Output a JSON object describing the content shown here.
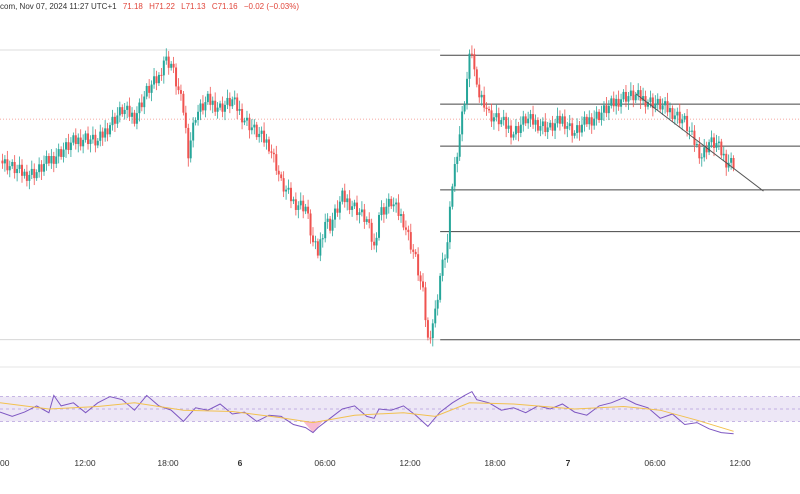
{
  "header": {
    "source": "com, Nov 07, 2024 11:27 UTC+1",
    "open": "71.18",
    "high": "H71.22",
    "low": "L71.13",
    "close": "C71.16",
    "change": "−0.02 (−0.03%)"
  },
  "colors": {
    "up": "#26a69a",
    "down": "#ef5350",
    "rsi_line": "#7e57c2",
    "rsi_ma": "#f2c14e",
    "rsi_band": "#ede7f6",
    "fib": "#444444",
    "trend": "#555555",
    "price_line": "#f28b82"
  },
  "chart_data": [
    {
      "type": "candlestick",
      "title": "",
      "x_ticks": [
        "00",
        "12:00",
        "18:00",
        "6",
        "06:00",
        "12:00",
        "18:00",
        "7",
        "06:00",
        "12:00"
      ],
      "bold_ticks": [
        "6",
        "7"
      ],
      "current_price": 71.16,
      "close_path": [
        [
          0,
          70.98
        ],
        [
          5,
          70.95
        ],
        [
          10,
          70.92
        ],
        [
          15,
          70.93
        ],
        [
          20,
          70.98
        ],
        [
          25,
          71.02
        ],
        [
          30,
          71.06
        ],
        [
          35,
          71.08
        ],
        [
          40,
          71.06
        ],
        [
          45,
          71.14
        ],
        [
          50,
          71.2
        ],
        [
          55,
          71.17
        ],
        [
          60,
          71.28
        ],
        [
          65,
          71.34
        ],
        [
          67,
          71.42
        ],
        [
          70,
          71.4
        ],
        [
          75,
          71.2
        ],
        [
          77,
          71.02
        ],
        [
          80,
          71.18
        ],
        [
          85,
          71.24
        ],
        [
          90,
          71.21
        ],
        [
          95,
          71.24
        ],
        [
          100,
          71.16
        ],
        [
          105,
          71.1
        ],
        [
          110,
          71.05
        ],
        [
          113,
          70.96
        ],
        [
          115,
          70.88
        ],
        [
          120,
          70.8
        ],
        [
          125,
          70.78
        ],
        [
          128,
          70.62
        ],
        [
          130,
          70.58
        ],
        [
          133,
          70.72
        ],
        [
          135,
          70.7
        ],
        [
          140,
          70.82
        ],
        [
          145,
          70.78
        ],
        [
          150,
          70.72
        ],
        [
          153,
          70.6
        ],
        [
          155,
          70.75
        ],
        [
          160,
          70.8
        ],
        [
          165,
          70.72
        ],
        [
          170,
          70.55
        ],
        [
          173,
          70.4
        ],
        [
          175,
          70.2
        ],
        [
          178,
          70.32
        ],
        [
          180,
          70.48
        ],
        [
          183,
          70.62
        ],
        [
          185,
          70.88
        ],
        [
          188,
          71.1
        ],
        [
          190,
          71.25
        ],
        [
          192,
          71.42
        ],
        [
          193,
          71.46
        ],
        [
          195,
          71.28
        ],
        [
          198,
          71.24
        ],
        [
          200,
          71.18
        ],
        [
          205,
          71.15
        ],
        [
          210,
          71.1
        ],
        [
          215,
          71.16
        ],
        [
          220,
          71.14
        ],
        [
          225,
          71.12
        ],
        [
          230,
          71.16
        ],
        [
          235,
          71.1
        ],
        [
          240,
          71.15
        ],
        [
          245,
          71.18
        ],
        [
          250,
          71.22
        ],
        [
          255,
          71.26
        ],
        [
          260,
          71.26
        ],
        [
          265,
          71.24
        ],
        [
          270,
          71.22
        ],
        [
          275,
          71.19
        ],
        [
          280,
          71.15
        ],
        [
          283,
          71.08
        ],
        [
          287,
          71.0
        ],
        [
          290,
          71.06
        ],
        [
          293,
          71.05
        ],
        [
          297,
          70.98
        ],
        [
          300,
          70.97
        ]
      ],
      "annotations": {
        "fib_levels": [
          71.437,
          71.225,
          71.043,
          70.853,
          70.672,
          70.203
        ],
        "trend_line": [
          [
            260,
            71.27
          ],
          [
            302,
            70.9
          ]
        ]
      }
    },
    {
      "type": "line",
      "title": "",
      "ylim": [
        0,
        100
      ],
      "band": [
        30,
        70
      ],
      "rsi": [
        [
          0,
          45
        ],
        [
          5,
          38
        ],
        [
          10,
          45
        ],
        [
          15,
          55
        ],
        [
          20,
          44
        ],
        [
          22,
          72
        ],
        [
          25,
          55
        ],
        [
          30,
          60
        ],
        [
          35,
          44
        ],
        [
          40,
          60
        ],
        [
          45,
          70
        ],
        [
          50,
          65
        ],
        [
          55,
          48
        ],
        [
          60,
          72
        ],
        [
          65,
          55
        ],
        [
          70,
          48
        ],
        [
          75,
          30
        ],
        [
          80,
          52
        ],
        [
          85,
          48
        ],
        [
          90,
          58
        ],
        [
          95,
          42
        ],
        [
          100,
          45
        ],
        [
          105,
          30
        ],
        [
          110,
          40
        ],
        [
          115,
          38
        ],
        [
          120,
          25
        ],
        [
          125,
          20
        ],
        [
          128,
          12
        ],
        [
          130,
          20
        ],
        [
          135,
          35
        ],
        [
          140,
          50
        ],
        [
          145,
          55
        ],
        [
          150,
          38
        ],
        [
          153,
          35
        ],
        [
          155,
          50
        ],
        [
          160,
          48
        ],
        [
          165,
          55
        ],
        [
          170,
          40
        ],
        [
          175,
          22
        ],
        [
          180,
          45
        ],
        [
          185,
          60
        ],
        [
          190,
          72
        ],
        [
          193,
          78
        ],
        [
          195,
          65
        ],
        [
          200,
          60
        ],
        [
          205,
          48
        ],
        [
          210,
          52
        ],
        [
          215,
          44
        ],
        [
          220,
          55
        ],
        [
          225,
          50
        ],
        [
          230,
          58
        ],
        [
          235,
          45
        ],
        [
          240,
          40
        ],
        [
          245,
          55
        ],
        [
          250,
          60
        ],
        [
          255,
          68
        ],
        [
          260,
          58
        ],
        [
          265,
          52
        ],
        [
          270,
          35
        ],
        [
          275,
          42
        ],
        [
          280,
          25
        ],
        [
          285,
          28
        ],
        [
          290,
          18
        ],
        [
          295,
          12
        ],
        [
          300,
          10
        ]
      ],
      "ma": [
        [
          0,
          60
        ],
        [
          20,
          50
        ],
        [
          40,
          54
        ],
        [
          55,
          60
        ],
        [
          75,
          48
        ],
        [
          95,
          46
        ],
        [
          115,
          36
        ],
        [
          128,
          28
        ],
        [
          145,
          40
        ],
        [
          165,
          44
        ],
        [
          178,
          38
        ],
        [
          192,
          60
        ],
        [
          210,
          58
        ],
        [
          235,
          50
        ],
        [
          255,
          54
        ],
        [
          270,
          48
        ],
        [
          285,
          32
        ],
        [
          300,
          14
        ]
      ]
    }
  ]
}
